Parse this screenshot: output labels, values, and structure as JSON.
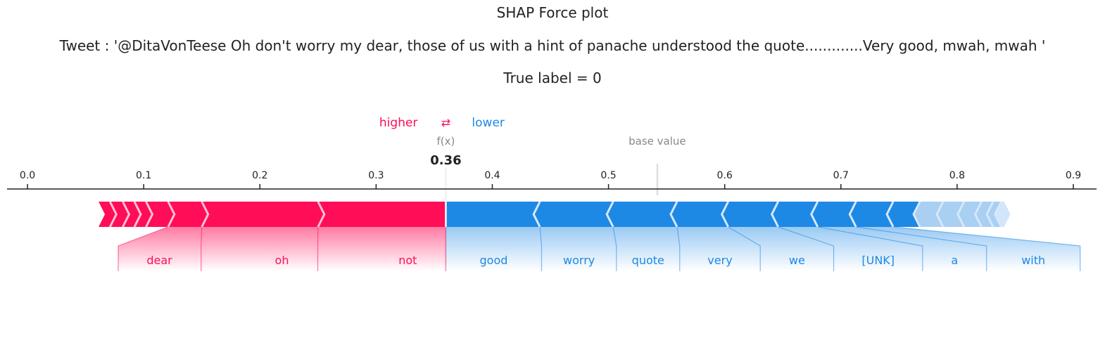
{
  "chart_data": {
    "type": "force",
    "title": "SHAP Force plot",
    "subtitle": "Tweet : '@DitaVonTeese Oh don't worry my dear, those of us with a hint of panache understood the quote.............Very good, mwah, mwah '",
    "label_line": "True label = 0",
    "legend": {
      "higher": "higher",
      "lower": "lower",
      "arrows": "⇄"
    },
    "fx_label": "f(x)",
    "fx_value": 0.36,
    "fx_text": "0.36",
    "base_label": "base value",
    "base_value": 0.542,
    "xlim": [
      -0.0176,
      0.92
    ],
    "ticks": [
      0.0,
      0.1,
      0.2,
      0.3,
      0.4,
      0.5,
      0.6,
      0.7,
      0.8,
      0.9
    ],
    "tick_labels": [
      "0.0",
      "0.1",
      "0.2",
      "0.3",
      "0.4",
      "0.5",
      "0.6",
      "0.7",
      "0.8",
      "0.9"
    ],
    "positive_boundaries": [
      0.063,
      0.071,
      0.082,
      0.092,
      0.102,
      0.121,
      0.15,
      0.25,
      0.36
    ],
    "negative_boundaries": [
      0.36,
      0.441,
      0.504,
      0.559,
      0.603,
      0.646,
      0.68,
      0.713,
      0.745,
      0.768,
      0.788,
      0.806,
      0.821,
      0.831,
      0.838
    ],
    "positive_labels": [
      {
        "name": "dear",
        "from": 0.121,
        "to": 0.15
      },
      {
        "name": "oh",
        "from": 0.15,
        "to": 0.25
      },
      {
        "name": "not",
        "from": 0.25,
        "to": 0.36
      }
    ],
    "negative_labels": [
      {
        "name": "good",
        "from": 0.36,
        "to": 0.441
      },
      {
        "name": "worry",
        "from": 0.441,
        "to": 0.504
      },
      {
        "name": "quote",
        "from": 0.504,
        "to": 0.559
      },
      {
        "name": "very",
        "from": 0.559,
        "to": 0.603
      },
      {
        "name": "we",
        "from": 0.603,
        "to": 0.646
      },
      {
        "name": "[UNK]",
        "from": 0.646,
        "to": 0.68
      },
      {
        "name": "a",
        "from": 0.68,
        "to": 0.713
      },
      {
        "name": "with",
        "from": 0.713,
        "to": 0.745
      }
    ],
    "colors": {
      "positive": "#ff0d57",
      "negative": "#1e88e5",
      "negative_light": "#d1e6fa",
      "axis": "#222222",
      "muted": "#888888"
    }
  }
}
